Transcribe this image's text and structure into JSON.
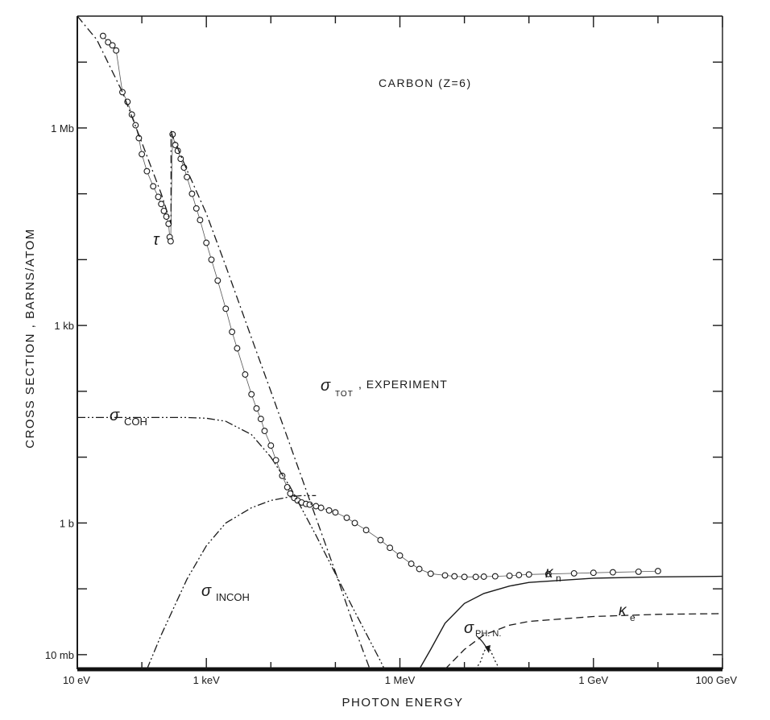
{
  "chart_data": {
    "type": "line",
    "title": "CARBON (Z=6)",
    "xlabel": "PHOTON ENERGY",
    "ylabel": "CROSS SECTION , BARNS/ATOM",
    "x_scale": "log",
    "y_scale": "log",
    "xlim_eV": [
      10,
      100000000000.0
    ],
    "ylim_barns": [
      0.006,
      50000000.0
    ],
    "x_ticks": [
      {
        "value": 10,
        "label": "10 eV"
      },
      {
        "value": 1000,
        "label": "1 keV"
      },
      {
        "value": 1000000,
        "label": "1 MeV"
      },
      {
        "value": 1000000000,
        "label": "1 GeV"
      },
      {
        "value": 100000000000,
        "label": "100 GeV"
      }
    ],
    "y_ticks": [
      {
        "value": 0.01,
        "label": "10 mb"
      },
      {
        "value": 1,
        "label": "1 b"
      },
      {
        "value": 1000,
        "label": "1 kb"
      },
      {
        "value": 1000000,
        "label": "1 Mb"
      }
    ],
    "annotations": {
      "tau": "τ",
      "sigma": "σ",
      "tot_suffix": ", EXPERIMENT",
      "tot_sub": "TOT",
      "coh_sub": "COH",
      "incoh_sub": "INCOH",
      "phn_sub": "PH. N.",
      "kappa": "κ",
      "kn_sub": "n",
      "ke_sub": "e"
    },
    "series": [
      {
        "name": "σ TOT , EXPERIMENT",
        "style": "circles",
        "x": [
          25,
          30,
          35,
          40,
          50,
          60,
          70,
          80,
          90,
          100,
          120,
          150,
          180,
          200,
          220,
          240,
          260,
          270,
          280,
          300,
          330,
          360,
          400,
          450,
          500,
          600,
          700,
          800,
          1000,
          1200,
          1500,
          2000,
          2500,
          3000,
          4000,
          5000,
          6000,
          7000,
          8000,
          10000,
          12000,
          15000,
          18000,
          20000,
          23000,
          26000,
          30000,
          35000,
          40000,
          50000,
          60000,
          80000,
          100000,
          150000,
          200000,
          300000,
          500000,
          700000,
          1000000,
          1500000,
          2000000,
          3000000,
          5000000,
          7000000,
          10000000,
          15000000,
          20000000,
          30000000,
          50000000,
          70000000,
          100000000,
          200000000,
          500000000,
          1000000000,
          2000000000,
          5000000000,
          10000000000
        ],
        "y": [
          25000000.0,
          20000000.0,
          18000000.0,
          15000000.0,
          3500000.0,
          2500000.0,
          1600000.0,
          1100000.0,
          700000.0,
          400000.0,
          220000.0,
          130000.0,
          90000.0,
          70000.0,
          55000.0,
          45000.0,
          35000.0,
          22000.0,
          19000.0,
          800000.0,
          550000.0,
          450000.0,
          340000.0,
          250000.0,
          180000.0,
          100000.0,
          60000.0,
          40000.0,
          18000.0,
          10000.0,
          4800,
          1800,
          800,
          450,
          180,
          90,
          55,
          38,
          25,
          15,
          9,
          5.2,
          3.5,
          2.8,
          2.4,
          2.2,
          2.05,
          1.95,
          1.9,
          1.8,
          1.7,
          1.55,
          1.45,
          1.2,
          1.0,
          0.78,
          0.55,
          0.42,
          0.32,
          0.24,
          0.2,
          0.17,
          0.16,
          0.155,
          0.152,
          0.152,
          0.153,
          0.155,
          0.158,
          0.162,
          0.165,
          0.168,
          0.172,
          0.175,
          0.178,
          0.182,
          0.186
        ]
      },
      {
        "name": "τ",
        "style": "dash-dot",
        "x": [
          10,
          20,
          50,
          100,
          200,
          283,
          284,
          300,
          500,
          1000,
          2000,
          5000,
          10000,
          20000,
          50000,
          100000,
          200000,
          400000
        ],
        "y": [
          50000000.0,
          22000000.0,
          3500000.0,
          600000.0,
          100000.0,
          35000.0,
          900000.0,
          750000.0,
          230000.0,
          50000.0,
          8000,
          650,
          100,
          15,
          1.2,
          0.18,
          0.025,
          0.004
        ]
      },
      {
        "name": "σ COH",
        "style": "dash-dot-dot",
        "x": [
          10,
          100,
          500,
          1000,
          2000,
          5000,
          10000,
          20000,
          50000,
          100000,
          200000,
          500000,
          1000000
        ],
        "y": [
          40,
          40,
          40,
          39,
          35,
          22,
          10,
          3.5,
          0.65,
          0.17,
          0.045,
          0.008,
          0.002
        ]
      },
      {
        "name": "σ INCOH",
        "style": "dash-dot-dot",
        "x": [
          120,
          200,
          500,
          1000,
          2000,
          5000,
          10000,
          20000,
          30000,
          50000
        ],
        "y": [
          0.006,
          0.02,
          0.14,
          0.45,
          1.0,
          1.7,
          2.2,
          2.5,
          2.6,
          2.6
        ]
      },
      {
        "name": "κ n",
        "style": "solid",
        "x": [
          2000000,
          3000000,
          5000000,
          10000000,
          20000000,
          50000000,
          100000000,
          1000000000,
          10000000000,
          100000000000
        ],
        "y": [
          0.006,
          0.012,
          0.03,
          0.06,
          0.085,
          0.11,
          0.125,
          0.145,
          0.152,
          0.155
        ]
      },
      {
        "name": "κ e",
        "style": "dashed",
        "x": [
          5000000,
          10000000,
          20000000,
          50000000,
          100000000,
          1000000000,
          10000000000,
          100000000000
        ],
        "y": [
          0.006,
          0.012,
          0.02,
          0.028,
          0.032,
          0.038,
          0.041,
          0.042
        ]
      },
      {
        "name": "σ PH. N.",
        "style": "dotted",
        "x": [
          15000000,
          18000000,
          20000000,
          23000000,
          26000000,
          30000000,
          35000000
        ],
        "y": [
          0.006,
          0.008,
          0.011,
          0.014,
          0.011,
          0.008,
          0.006
        ]
      }
    ]
  }
}
